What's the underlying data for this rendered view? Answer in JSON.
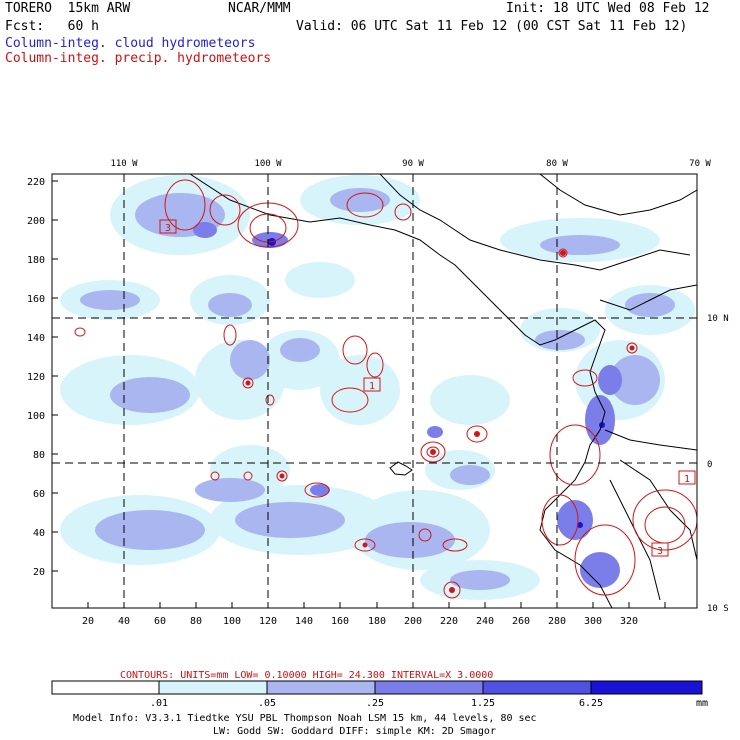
{
  "header": {
    "model": "TORERO  15km ARW",
    "center": "NCAR/MMM",
    "init": "Init: 18 UTC Wed 08 Feb 12",
    "fcst": "Fcst:   60 h",
    "valid": "Valid: 06 UTC Sat 11 Feb 12 (00 CST Sat 11 Feb 12)",
    "field1": "Column-integ. cloud hydrometeors",
    "field2": "Column-integ. precip. hydrometeors"
  },
  "map": {
    "lon_labels": [
      "110 W",
      "100 W",
      "90 W",
      "80 W",
      "70 W"
    ],
    "lat_labels": [
      "10 N",
      "0",
      "10 S"
    ],
    "x_ticks": [
      "20",
      "40",
      "60",
      "80",
      "100",
      "120",
      "140",
      "160",
      "180",
      "200",
      "220",
      "240",
      "260",
      "280",
      "300",
      "320"
    ],
    "y_ticks": [
      "20",
      "40",
      "60",
      "80",
      "100",
      "120",
      "140",
      "160",
      "180",
      "200",
      "220"
    ],
    "box_labels": [
      "3",
      "1",
      "1",
      "3"
    ]
  },
  "contour_info": {
    "text": "CONTOURS:  UNITS=mm  LOW= 0.10000      HIGH=  24.300      INTERVAL=X  3.0000"
  },
  "colorbar": {
    "thresholds": [
      ".01",
      ".05",
      ".25",
      "1.25",
      "6.25"
    ],
    "unit": "mm",
    "colors": [
      "#ffffff",
      "#d8f4fb",
      "#a9b6f0",
      "#7b7ee8",
      "#5050e4",
      "#1a12d6"
    ]
  },
  "footer": {
    "line1": "Model Info: V3.3.1   Tiedtke YSU PBL  Thompson     Noah LSM  15 km,   44 levels,   80 sec",
    "line2": "LW: Godd SW: Goddard DIFF: simple KM: 2D Smagor"
  }
}
